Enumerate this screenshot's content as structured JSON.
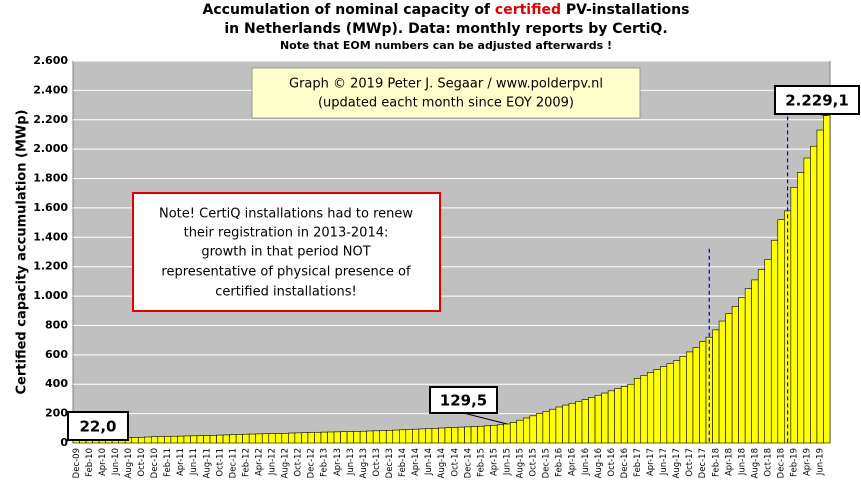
{
  "chart_data": {
    "type": "bar",
    "title": [
      [
        "Accumulation  of nominal  capacity of ",
        "certified",
        " PV-installations"
      ],
      [
        "in Netherlands (MWp). Data: monthly  reports by CertiQ."
      ],
      [
        "Note that EOM numbers can be adjusted afterwards  !"
      ]
    ],
    "y_label": "Certified capacity accumulation (MWp)",
    "credit": [
      "Graph © 2019 Peter J. Segaar / www.polderpv.nl",
      "(updated eacht month since EOY 2009)"
    ],
    "note": [
      "Note! CertiQ installations had to renew",
      "their registration in 2013-2014:",
      "growth in that period NOT",
      "representative of physical presence of",
      "certified installations!"
    ],
    "color": "#ffff00",
    "categories": [
      "Dec-09",
      null,
      "Feb-10",
      null,
      "Apr-10",
      null,
      "Jun-10",
      null,
      "Aug-10",
      null,
      "Oct-10",
      null,
      "Dec-10",
      null,
      "Feb-11",
      null,
      "Apr-11",
      null,
      "Jun-11",
      null,
      "Aug-11",
      null,
      "Oct-11",
      null,
      "Dec-11",
      null,
      "Feb-12",
      null,
      "Apr-12",
      null,
      "Jun-12",
      null,
      "Aug-12",
      null,
      "Oct-12",
      null,
      "Dec-12",
      null,
      "Feb-13",
      null,
      "Apr-13",
      null,
      "Jun-13",
      null,
      "Aug-13",
      null,
      "Oct-13",
      null,
      "Dec-13",
      null,
      "Feb-14",
      null,
      "Apr-14",
      null,
      "Jun-14",
      null,
      "Aug-14",
      null,
      "Oct-14",
      null,
      "Dec-14",
      null,
      "Feb-15",
      null,
      "Apr-15",
      null,
      "Jun-15",
      null,
      "Aug-15",
      null,
      "Oct-15",
      null,
      "Dec-15",
      null,
      "Feb-16",
      null,
      "Apr-16",
      null,
      "Jun-16",
      null,
      "Aug-16",
      null,
      "Oct-16",
      null,
      "Dec-16",
      null,
      "Feb-17",
      null,
      "Apr-17",
      null,
      "Jun-17",
      null,
      "Aug-17",
      null,
      "Oct-17",
      null,
      "Dec-17",
      null,
      "Feb-18",
      null,
      "Apr-18",
      null,
      "Jun-18",
      null,
      "Aug-18",
      null,
      "Oct-18",
      null,
      "Dec-18",
      null,
      "Feb-19",
      null,
      "Apr-19",
      null,
      "Jun-19",
      null
    ],
    "values": [
      22.0,
      24,
      26,
      28,
      30,
      32,
      34,
      35,
      36,
      38,
      39,
      41,
      43,
      44,
      45,
      46,
      47,
      48,
      49,
      50,
      51,
      52,
      54,
      55,
      57,
      58,
      60,
      61,
      62,
      63,
      64,
      65,
      66,
      68,
      69,
      70,
      72,
      73,
      74,
      75,
      76,
      77,
      78,
      79,
      80,
      82,
      83,
      84,
      86,
      88,
      90,
      92,
      94,
      96,
      98,
      100,
      102,
      104,
      106,
      108,
      110,
      112,
      114,
      117,
      120,
      124,
      129.5,
      140,
      155,
      170,
      185,
      200,
      215,
      230,
      245,
      258,
      270,
      283,
      295,
      310,
      325,
      340,
      355,
      370,
      385,
      400,
      440,
      460,
      480,
      500,
      520,
      540,
      560,
      590,
      620,
      650,
      690,
      720,
      770,
      830,
      880,
      930,
      990,
      1050,
      1110,
      1180,
      1250,
      1380,
      1520,
      1580,
      1740,
      1840,
      1940,
      2020,
      2130,
      2229.1
    ],
    "value_labels": [
      "22,0",
      null,
      null,
      null,
      null,
      null,
      null,
      null,
      null,
      null,
      null,
      null,
      null,
      null,
      null,
      null,
      null,
      null,
      null,
      null,
      null,
      null,
      null,
      null,
      null,
      null,
      null,
      null,
      null,
      null,
      null,
      null,
      null,
      null,
      null,
      null,
      null,
      null,
      null,
      null,
      null,
      null,
      null,
      null,
      null,
      null,
      null,
      null,
      null,
      null,
      null,
      null,
      null,
      null,
      null,
      null,
      null,
      null,
      null,
      null,
      null,
      null,
      null,
      null,
      null,
      null,
      "129,5",
      null,
      null,
      null,
      null,
      null,
      null,
      null,
      null,
      null,
      null,
      null,
      null,
      null,
      null,
      null,
      null,
      null,
      null,
      null,
      null,
      null,
      null,
      null,
      null,
      null,
      null,
      null,
      null,
      null,
      null,
      null,
      null,
      null,
      null,
      null,
      null,
      null,
      null,
      null,
      null,
      null,
      null,
      null,
      null,
      null,
      null,
      null,
      null,
      "2.229,1"
    ],
    "ylim": [
      0,
      2600
    ],
    "yticks": [
      0,
      200,
      400,
      600,
      800,
      {
        "value": 1000,
        "label": "1.000"
      },
      {
        "value": 1200,
        "label": "1.200"
      },
      {
        "value": 1400,
        "label": "1.400"
      },
      {
        "value": 1600,
        "label": "1.600"
      },
      {
        "value": 1800,
        "label": "1.800"
      },
      {
        "value": 2000,
        "label": "2.000"
      },
      {
        "value": 2200,
        "label": "2.200"
      },
      {
        "value": 2400,
        "label": "2.400"
      },
      {
        "value": 2600,
        "label": "2.600"
      }
    ],
    "grid": true
  }
}
